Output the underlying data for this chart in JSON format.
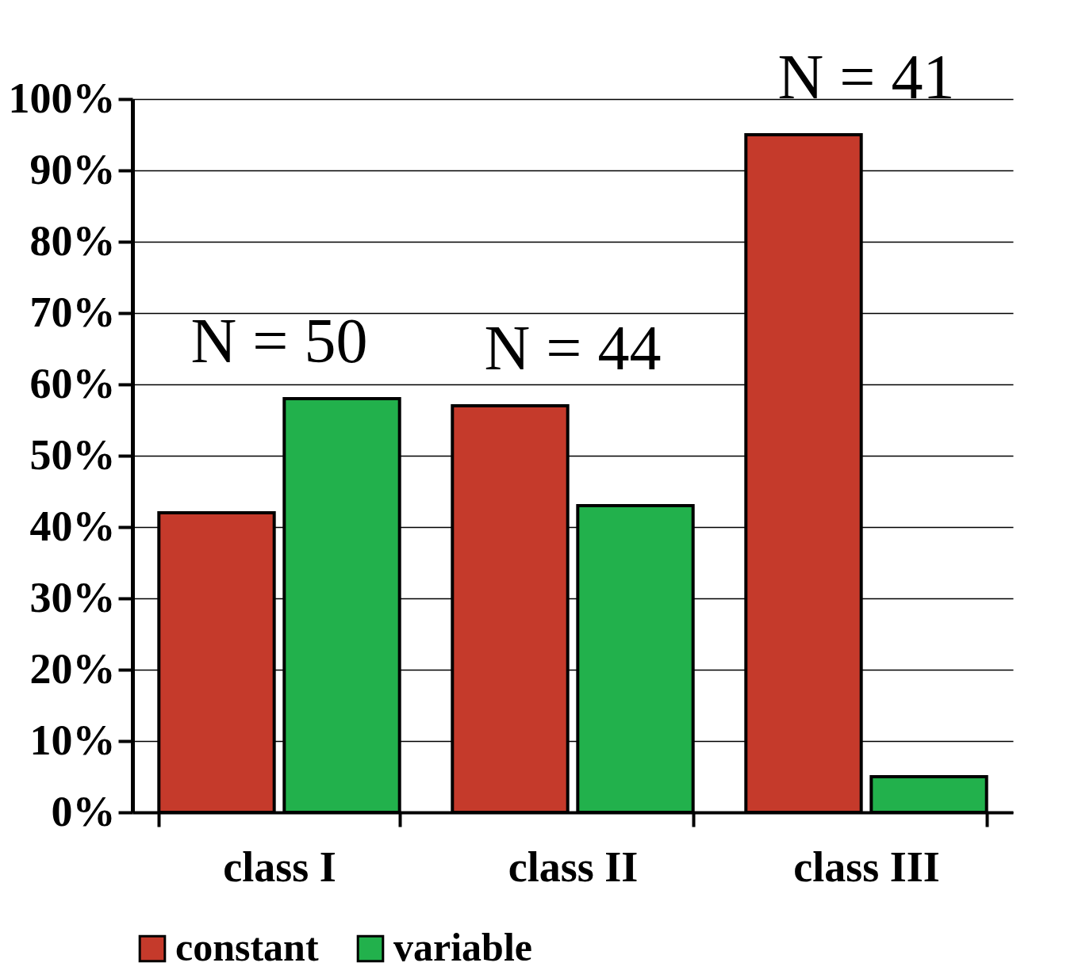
{
  "chart_data": {
    "type": "bar",
    "categories": [
      "class I",
      "class II",
      "class III"
    ],
    "series": [
      {
        "name": "constant",
        "color": "#c53a2b",
        "values": [
          42,
          57,
          95
        ]
      },
      {
        "name": "variable",
        "color": "#22b14c",
        "values": [
          58,
          43,
          5
        ]
      }
    ],
    "ylim": [
      0,
      100
    ],
    "yticks": [
      {
        "value": 0,
        "label": "0%"
      },
      {
        "value": 10,
        "label": "10%"
      },
      {
        "value": 20,
        "label": "20%"
      },
      {
        "value": 30,
        "label": "30%"
      },
      {
        "value": 40,
        "label": "40%"
      },
      {
        "value": 50,
        "label": "50%"
      },
      {
        "value": 60,
        "label": "60%"
      },
      {
        "value": 70,
        "label": "70%"
      },
      {
        "value": 80,
        "label": "80%"
      },
      {
        "value": 90,
        "label": "90%"
      },
      {
        "value": 100,
        "label": "100%"
      }
    ],
    "annotations": [
      "N = 50",
      "N = 44",
      "N = 41"
    ],
    "grid": "y",
    "legend": "bottom"
  }
}
